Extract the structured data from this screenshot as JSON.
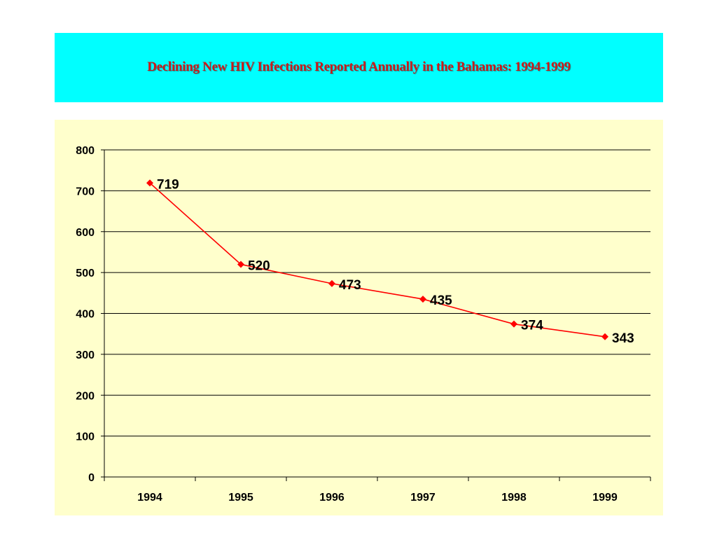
{
  "slide": {
    "title": "Declining New HIV Infections Reported Annually in the Bahamas: 1994-1999"
  },
  "colors": {
    "banner_background": "#00ffff",
    "title_text": "#cc1a1a",
    "plot_background": "#ffffcc",
    "series_line": "#ff0000",
    "gridline": "#000000"
  },
  "chart_data": {
    "type": "line",
    "title": "Declining New HIV Infections Reported Annually in the Bahamas: 1994-1999",
    "xlabel": "",
    "ylabel": "",
    "categories": [
      "1994",
      "1995",
      "1996",
      "1997",
      "1998",
      "1999"
    ],
    "series": [
      {
        "values": [
          719,
          520,
          473,
          435,
          374,
          343
        ],
        "marker": "diamond",
        "data_labels": [
          "719",
          "520",
          "473",
          "435",
          "374",
          "343"
        ]
      }
    ],
    "ylim": [
      0,
      800
    ],
    "yticks": [
      0,
      100,
      200,
      300,
      400,
      500,
      600,
      700,
      800
    ],
    "ytick_labels": [
      "0",
      "100",
      "200",
      "300",
      "400",
      "500",
      "600",
      "700",
      "800"
    ],
    "grid": "horizontal",
    "legend": "none"
  }
}
